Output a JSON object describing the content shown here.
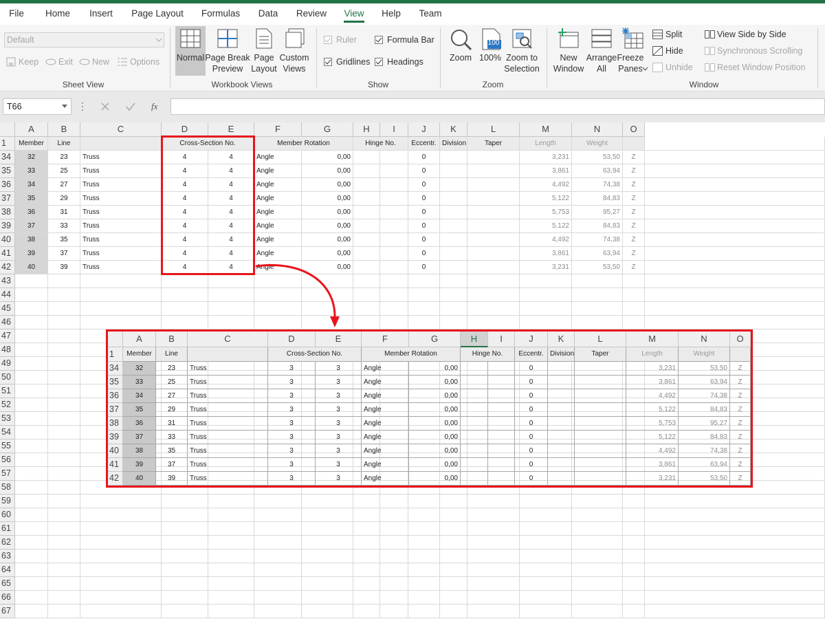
{
  "ribbon": {
    "tabs": [
      "File",
      "Home",
      "Insert",
      "Page Layout",
      "Formulas",
      "Data",
      "Review",
      "View",
      "Help",
      "Team"
    ],
    "active_tab": 7,
    "sheet_view": {
      "label": "Sheet View",
      "default": "Default",
      "keep": "Keep",
      "exit": "Exit",
      "new": "New",
      "options": "Options"
    },
    "workbook_views": {
      "label": "Workbook Views",
      "normal": "Normal",
      "page_break_preview": [
        "Page Break",
        "Preview"
      ],
      "page_layout": [
        "Page",
        "Layout"
      ],
      "custom_views": [
        "Custom",
        "Views"
      ]
    },
    "show": {
      "label": "Show",
      "ruler": "Ruler",
      "formula_bar": "Formula Bar",
      "gridlines": "Gridlines",
      "headings": "Headings"
    },
    "zoom": {
      "label": "Zoom",
      "zoom": "Zoom",
      "icon_100": "100",
      "zoom_100": "100%",
      "zoom_to_selection": [
        "Zoom to",
        "Selection"
      ]
    },
    "window": {
      "label": "Window",
      "new_window": [
        "New",
        "Window"
      ],
      "arrange_all": [
        "Arrange",
        "All"
      ],
      "freeze_panes": [
        "Freeze",
        "Panes"
      ],
      "split": "Split",
      "hide": "Hide",
      "unhide": "Unhide",
      "view_side_by_side": "View Side by Side",
      "synchronous_scrolling": "Synchronous Scrolling",
      "reset_window_position": "Reset Window Position"
    }
  },
  "formula_bar": {
    "name_box": "T66",
    "fx": "fx"
  },
  "sheet": {
    "columns": [
      "A",
      "B",
      "C",
      "D",
      "E",
      "F",
      "G",
      "H",
      "I",
      "J",
      "K",
      "L",
      "M",
      "N",
      "O"
    ],
    "header_row": {
      "num": 1,
      "cells": {
        "A": "Member",
        "B": "Line",
        "D": "Cross-Section No.",
        "F": "Member Rotation",
        "H": "Hinge No.",
        "J": "Eccentr.",
        "K": "Division",
        "L": "Taper",
        "M": "Length",
        "N": "Weight"
      }
    },
    "rows": [
      {
        "num": 34,
        "cells": {
          "A": 32,
          "B": 23,
          "C": "Truss",
          "D": 4,
          "E": 4,
          "F": "Angle",
          "G": "0,00",
          "J": 0,
          "M": "3,231",
          "N": "53,50",
          "O": "Z"
        }
      },
      {
        "num": 35,
        "cells": {
          "A": 33,
          "B": 25,
          "C": "Truss",
          "D": 4,
          "E": 4,
          "F": "Angle",
          "G": "0,00",
          "J": 0,
          "M": "3,861",
          "N": "63,94",
          "O": "Z"
        }
      },
      {
        "num": 36,
        "cells": {
          "A": 34,
          "B": 27,
          "C": "Truss",
          "D": 4,
          "E": 4,
          "F": "Angle",
          "G": "0,00",
          "J": 0,
          "M": "4,492",
          "N": "74,38",
          "O": "Z"
        }
      },
      {
        "num": 37,
        "cells": {
          "A": 35,
          "B": 29,
          "C": "Truss",
          "D": 4,
          "E": 4,
          "F": "Angle",
          "G": "0,00",
          "J": 0,
          "M": "5,122",
          "N": "84,83",
          "O": "Z"
        }
      },
      {
        "num": 38,
        "cells": {
          "A": 36,
          "B": 31,
          "C": "Truss",
          "D": 4,
          "E": 4,
          "F": "Angle",
          "G": "0,00",
          "J": 0,
          "M": "5,753",
          "N": "95,27",
          "O": "Z"
        }
      },
      {
        "num": 39,
        "cells": {
          "A": 37,
          "B": 33,
          "C": "Truss",
          "D": 4,
          "E": 4,
          "F": "Angle",
          "G": "0,00",
          "J": 0,
          "M": "5,122",
          "N": "84,83",
          "O": "Z"
        }
      },
      {
        "num": 40,
        "cells": {
          "A": 38,
          "B": 35,
          "C": "Truss",
          "D": 4,
          "E": 4,
          "F": "Angle",
          "G": "0,00",
          "J": 0,
          "M": "4,492",
          "N": "74,38",
          "O": "Z"
        }
      },
      {
        "num": 41,
        "cells": {
          "A": 39,
          "B": 37,
          "C": "Truss",
          "D": 4,
          "E": 4,
          "F": "Angle",
          "G": "0,00",
          "J": 0,
          "M": "3,861",
          "N": "63,94",
          "O": "Z"
        }
      },
      {
        "num": 42,
        "cells": {
          "A": 40,
          "B": 39,
          "C": "Truss",
          "D": 4,
          "E": 4,
          "F": "Angle",
          "G": "0,00",
          "J": 0,
          "M": "3,231",
          "N": "53,50",
          "O": "Z"
        }
      }
    ],
    "empty_rows": [
      43,
      44,
      45,
      46,
      47,
      48,
      49,
      50,
      51,
      52,
      53,
      54,
      55,
      56,
      57,
      58,
      59,
      60,
      61,
      62,
      63,
      64,
      65,
      66,
      67
    ]
  },
  "inset": {
    "columns": [
      "A",
      "B",
      "C",
      "D",
      "E",
      "F",
      "G",
      "H",
      "I",
      "J",
      "K",
      "L",
      "M",
      "N",
      "O"
    ],
    "selected_column": 7,
    "header_row": {
      "num": 1,
      "cells": {
        "A": "Member",
        "B": "Line",
        "D": "Cross-Section No.",
        "F": "Member Rotation",
        "H": "Hinge No.",
        "J": "Eccentr.",
        "K": "Division",
        "L": "Taper",
        "M": "Length",
        "N": "Weight"
      }
    },
    "rows": [
      {
        "num": 34,
        "cells": {
          "A": 32,
          "B": 23,
          "C": "Truss",
          "D": 3,
          "E": 3,
          "F": "Angle",
          "G": "0,00",
          "J": 0,
          "M": "3,231",
          "N": "53,50",
          "O": "Z"
        }
      },
      {
        "num": 35,
        "cells": {
          "A": 33,
          "B": 25,
          "C": "Truss",
          "D": 3,
          "E": 3,
          "F": "Angle",
          "G": "0,00",
          "J": 0,
          "M": "3,861",
          "N": "63,94",
          "O": "Z"
        }
      },
      {
        "num": 36,
        "cells": {
          "A": 34,
          "B": 27,
          "C": "Truss",
          "D": 3,
          "E": 3,
          "F": "Angle",
          "G": "0,00",
          "J": 0,
          "M": "4,492",
          "N": "74,38",
          "O": "Z"
        }
      },
      {
        "num": 37,
        "cells": {
          "A": 35,
          "B": 29,
          "C": "Truss",
          "D": 3,
          "E": 3,
          "F": "Angle",
          "G": "0,00",
          "J": 0,
          "M": "5,122",
          "N": "84,83",
          "O": "Z"
        }
      },
      {
        "num": 38,
        "cells": {
          "A": 36,
          "B": 31,
          "C": "Truss",
          "D": 3,
          "E": 3,
          "F": "Angle",
          "G": "0,00",
          "J": 0,
          "M": "5,753",
          "N": "95,27",
          "O": "Z"
        }
      },
      {
        "num": 39,
        "cells": {
          "A": 37,
          "B": 33,
          "C": "Truss",
          "D": 3,
          "E": 3,
          "F": "Angle",
          "G": "0,00",
          "J": 0,
          "M": "5,122",
          "N": "84,83",
          "O": "Z"
        }
      },
      {
        "num": 40,
        "cells": {
          "A": 38,
          "B": 35,
          "C": "Truss",
          "D": 3,
          "E": 3,
          "F": "Angle",
          "G": "0,00",
          "J": 0,
          "M": "4,492",
          "N": "74,38",
          "O": "Z"
        }
      },
      {
        "num": 41,
        "cells": {
          "A": 39,
          "B": 37,
          "C": "Truss",
          "D": 3,
          "E": 3,
          "F": "Angle",
          "G": "0,00",
          "J": 0,
          "M": "3,861",
          "N": "63,94",
          "O": "Z"
        }
      },
      {
        "num": 42,
        "cells": {
          "A": 40,
          "B": 39,
          "C": "Truss",
          "D": 3,
          "E": 3,
          "F": "Angle",
          "G": "0,00",
          "J": 0,
          "M": "3,231",
          "N": "53,50",
          "O": "Z"
        }
      }
    ]
  }
}
